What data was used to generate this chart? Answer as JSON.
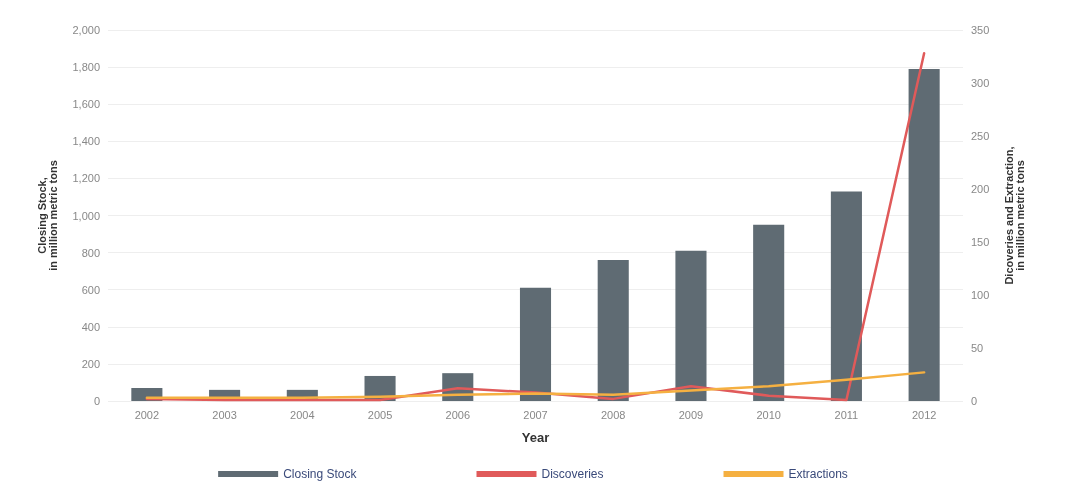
{
  "chart_data": {
    "type": "bar",
    "xlabel": "Year",
    "ylabel": "Closing Stock,\nin million metric tons",
    "y2label": "Dicoveries and Extraction,\nin million metric tons",
    "categories": [
      "2002",
      "2003",
      "2004",
      "2005",
      "2006",
      "2007",
      "2008",
      "2009",
      "2010",
      "2011",
      "2012"
    ],
    "series": [
      {
        "name": "Closing Stock",
        "color": "#5f6b73",
        "values": [
          70,
          60,
          60,
          135,
          150,
          610,
          760,
          810,
          950,
          1130,
          1790
        ]
      },
      {
        "name": "Discoveries",
        "type": "line",
        "axis": "y2",
        "color": "#e05a5a",
        "values": [
          2,
          1,
          1,
          1,
          12,
          8,
          2,
          14,
          5,
          1,
          328
        ]
      },
      {
        "name": "Extractions",
        "type": "line",
        "axis": "y2",
        "color": "#f5b041",
        "values": [
          3,
          3,
          3,
          4,
          6,
          7,
          6,
          10,
          14,
          20,
          27
        ]
      }
    ],
    "ylim": [
      0,
      2000
    ],
    "yticks": [
      {
        "value": 0,
        "label": "0"
      },
      {
        "value": 200,
        "label": "200"
      },
      {
        "value": 400,
        "label": "400"
      },
      {
        "value": 600,
        "label": "600"
      },
      {
        "value": 800,
        "label": "800"
      },
      {
        "value": 1000,
        "label": "1,000"
      },
      {
        "value": 1200,
        "label": "1,200"
      },
      {
        "value": 1400,
        "label": "1,400"
      },
      {
        "value": 1600,
        "label": "1,600"
      },
      {
        "value": 1800,
        "label": "1,800"
      },
      {
        "value": 2000,
        "label": "2,000"
      }
    ],
    "y2lim": [
      0,
      350
    ],
    "y2ticks": [
      0,
      50,
      100,
      150,
      200,
      250,
      300,
      350
    ],
    "grid": "y",
    "legend": "bottom",
    "marker": "none",
    "line_style": "solid"
  }
}
